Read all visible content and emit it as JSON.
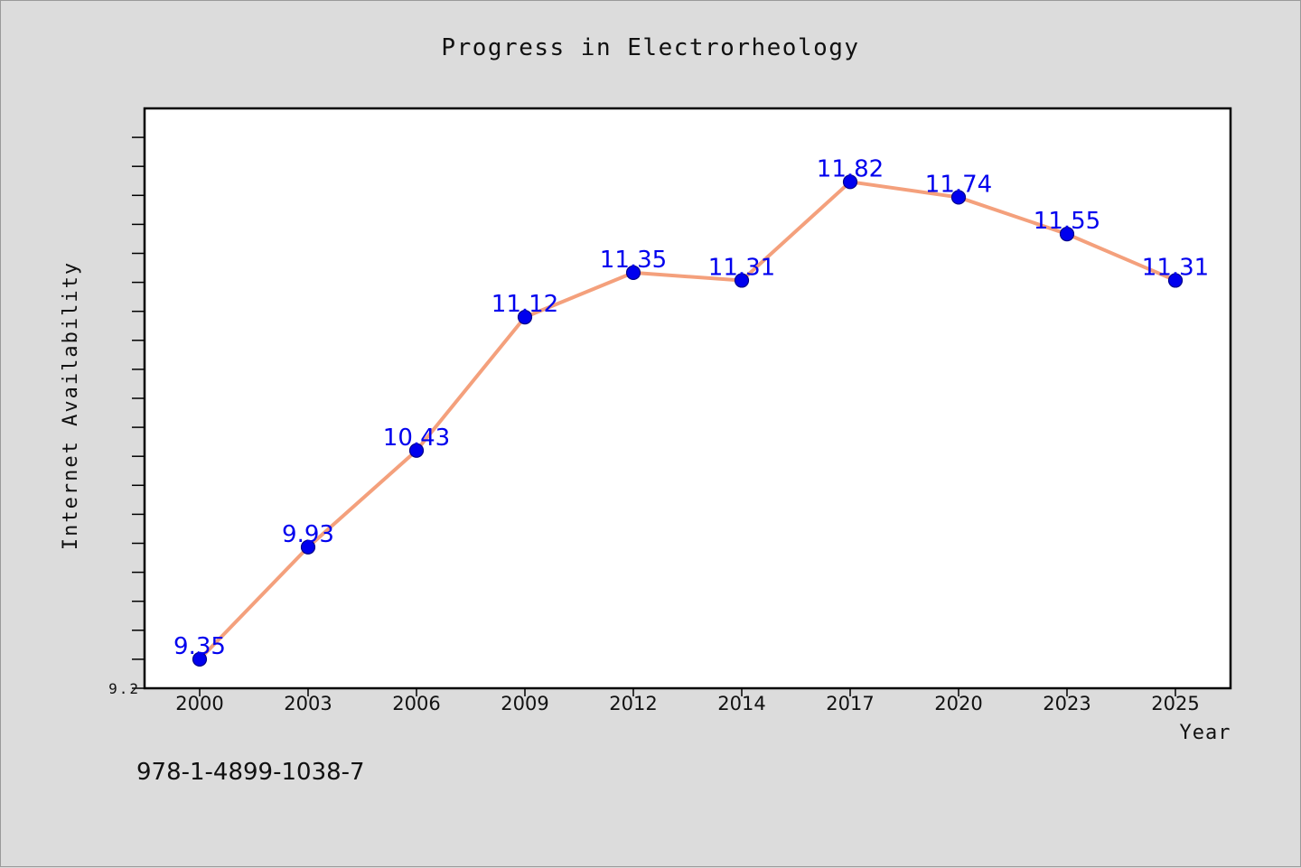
{
  "chart_data": {
    "type": "line",
    "title": "Progress in Electrorheology",
    "xlabel": "Year",
    "ylabel": "Internet Availability",
    "categories": [
      "2000",
      "2003",
      "2006",
      "2009",
      "2012",
      "2014",
      "2017",
      "2020",
      "2023",
      "2025"
    ],
    "series": [
      {
        "values": [
          9.35,
          9.93,
          10.43,
          11.12,
          11.35,
          11.31,
          11.82,
          11.74,
          11.55,
          11.31
        ],
        "data_labels": [
          "9.35",
          "9.93",
          "10.43",
          "11.12",
          "11.35",
          "11.31",
          "11.82",
          "11.74",
          "11.55",
          "11.31"
        ]
      }
    ],
    "ylim": [
      9.2,
      12.2
    ],
    "y_tick_labels": [
      "9.2"
    ],
    "grid": false,
    "legend": "none"
  },
  "footer_text": "978-1-4899-1038-7",
  "colors": {
    "background": "#dcdcdc",
    "plot_background": "#ffffff",
    "line": "#f4a07c",
    "marker": "#0000ee",
    "data_label": "#0000ee",
    "text": "#111111"
  }
}
